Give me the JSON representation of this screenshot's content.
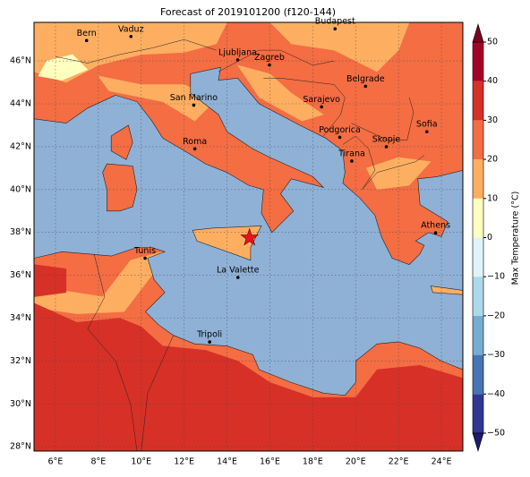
{
  "map": {
    "title": "Forecast of 2019101200 (f120-144)",
    "xlim": [
      5,
      25
    ],
    "ylim": [
      27.8,
      47.8
    ],
    "xticks": [
      {
        "value": 6,
        "label": "6°E"
      },
      {
        "value": 8,
        "label": "8°E"
      },
      {
        "value": 10,
        "label": "10°E"
      },
      {
        "value": 12,
        "label": "12°E"
      },
      {
        "value": 14,
        "label": "14°E"
      },
      {
        "value": 16,
        "label": "16°E"
      },
      {
        "value": 18,
        "label": "18°E"
      },
      {
        "value": 20,
        "label": "20°E"
      },
      {
        "value": 22,
        "label": "22°E"
      },
      {
        "value": 24,
        "label": "24°E"
      }
    ],
    "yticks": [
      {
        "value": 28,
        "label": "28°N"
      },
      {
        "value": 30,
        "label": "30°N"
      },
      {
        "value": 32,
        "label": "32°N"
      },
      {
        "value": 34,
        "label": "34°N"
      },
      {
        "value": 36,
        "label": "36°N"
      },
      {
        "value": 38,
        "label": "38°N"
      },
      {
        "value": 40,
        "label": "40°N"
      },
      {
        "value": 42,
        "label": "42°N"
      },
      {
        "value": 44,
        "label": "44°N"
      },
      {
        "value": 46,
        "label": "46°N"
      }
    ],
    "cities": [
      "Bern",
      "Vaduz",
      "Budapest",
      "Ljubljana",
      "Zagreb",
      "San Marino",
      "Sarajevo",
      "Belgrade",
      "Sofia",
      "Podgorica",
      "Skopje",
      "Roma",
      "Tirana",
      "Athens",
      "Tunis",
      "La Valette",
      "Tripoli"
    ],
    "colorbar": {
      "label": "Max Temperature (°C)",
      "lim": [
        -50,
        50
      ],
      "ticks": [
        {
          "value": -50,
          "label": "−50"
        },
        {
          "value": -40,
          "label": "−40"
        },
        {
          "value": -30,
          "label": "−30"
        },
        {
          "value": -20,
          "label": "−20"
        },
        {
          "value": -10,
          "label": "−10"
        },
        0,
        10,
        20,
        30,
        40,
        50
      ],
      "colors": [
        "#313695",
        "#4575b4",
        "#74add1",
        "#abd9e9",
        "#e0f3f8",
        "#ffffbf",
        "#fdae61",
        "#f46d43",
        "#d73027",
        "#a50026"
      ],
      "under": "#1a1a6e",
      "over": "#7a0020"
    }
  }
}
